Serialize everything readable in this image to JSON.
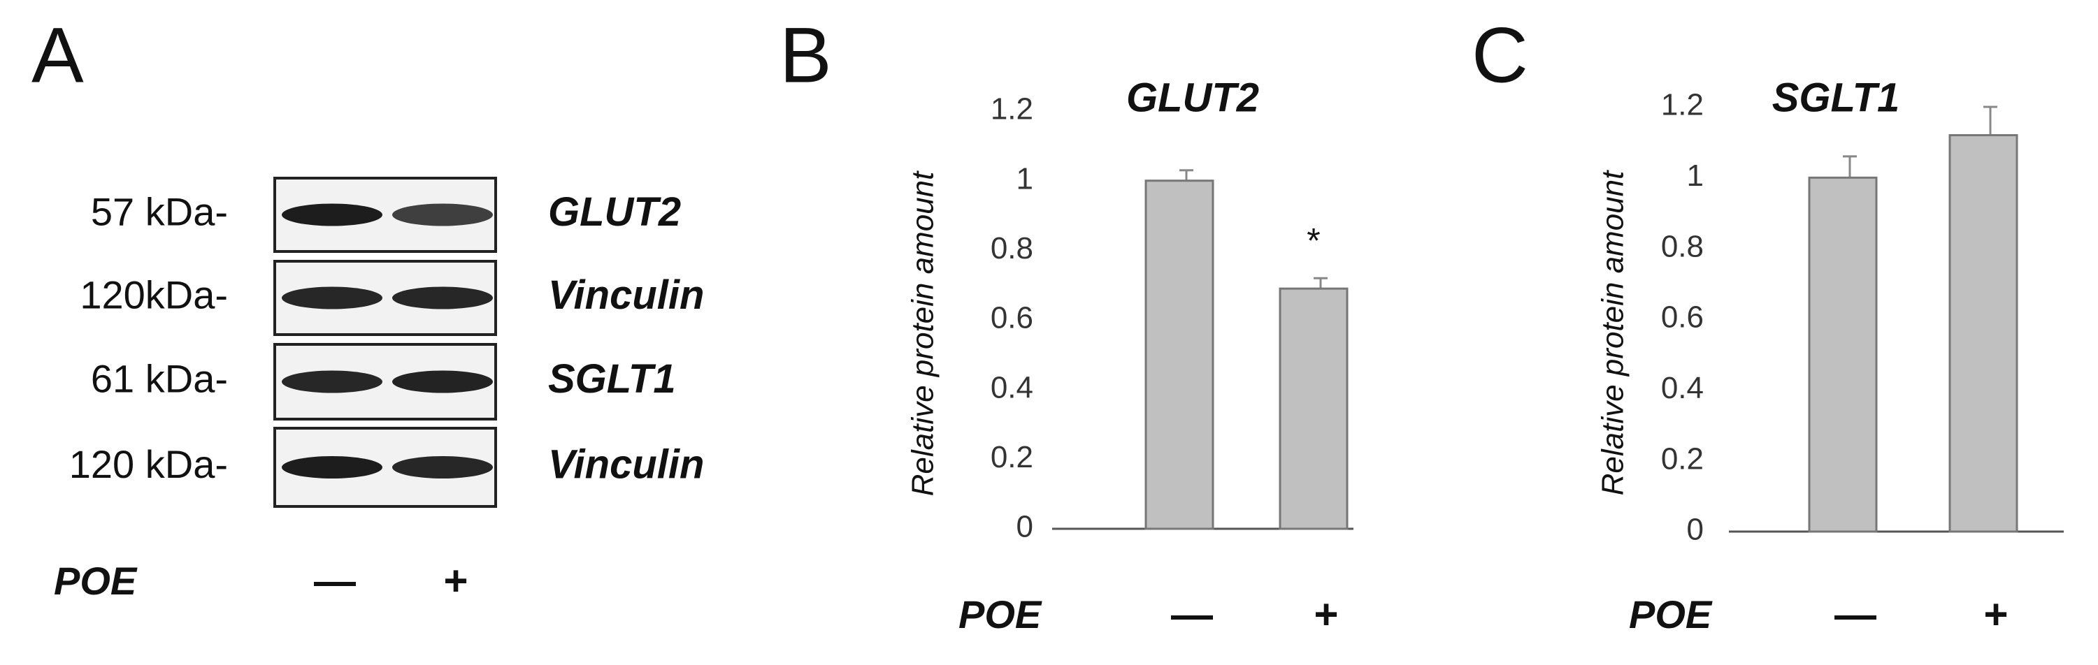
{
  "panel_a": {
    "label": "A",
    "rows": [
      {
        "marker": "57 kDa-",
        "protein": "GLUT2"
      },
      {
        "marker": "120kDa-",
        "protein": "Vinculin"
      },
      {
        "marker": "61 kDa-",
        "protein": "SGLT1"
      },
      {
        "marker": "120 kDa-",
        "protein": "Vinculin"
      }
    ],
    "treatment": "POE",
    "conditions": [
      "—",
      "+"
    ]
  },
  "chart_data": [
    {
      "type": "bar",
      "panel": "B",
      "title": "GLUT2",
      "ylabel": "Relative protein amount",
      "xlabel": "POE",
      "categories": [
        "—",
        "+"
      ],
      "values": [
        1.0,
        0.69
      ],
      "errors": [
        0.03,
        0.03
      ],
      "color": "#c0c0c0",
      "annotations": [
        {
          "text": "*",
          "category": "+"
        }
      ],
      "ylim": [
        0,
        1.2
      ],
      "yticks": [
        0,
        0.2,
        0.4,
        0.6,
        0.8,
        1,
        1.2
      ]
    },
    {
      "type": "bar",
      "panel": "C",
      "title": "SGLT1",
      "ylabel": "Relative protein amount",
      "xlabel": "POE",
      "categories": [
        "—",
        "+"
      ],
      "values": [
        1.0,
        1.12
      ],
      "errors": [
        0.06,
        0.08
      ],
      "color": "#c0c0c0",
      "ylim": [
        0,
        1.2
      ],
      "yticks": [
        0,
        0.2,
        0.4,
        0.6,
        0.8,
        1,
        1.2
      ]
    }
  ]
}
